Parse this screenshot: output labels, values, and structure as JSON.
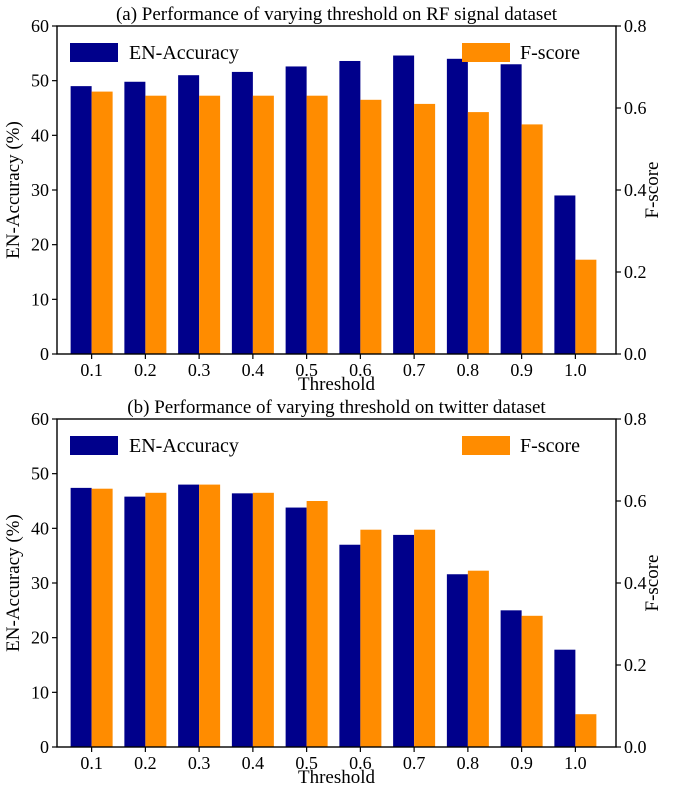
{
  "chart_data": [
    {
      "type": "bar",
      "title": "(a) Performance of varying threshold on RF signal dataset",
      "xlabel": "Threshold",
      "ylabel": "EN-Accuracy (%)",
      "y2label": "F-score",
      "categories": [
        "0.1",
        "0.2",
        "0.3",
        "0.4",
        "0.5",
        "0.6",
        "0.7",
        "0.8",
        "0.9",
        "1.0"
      ],
      "ylim": [
        0,
        60
      ],
      "y2lim": [
        0,
        0.8
      ],
      "yticks": [
        "0",
        "10",
        "20",
        "30",
        "40",
        "50",
        "60"
      ],
      "y2ticks": [
        "0.0",
        "0.2",
        "0.4",
        "0.6",
        "0.8"
      ],
      "grid": false,
      "series": [
        {
          "name": "EN-Accuracy",
          "axis": "left",
          "color": "#00008b",
          "values": [
            49.0,
            49.8,
            51.0,
            51.6,
            52.6,
            53.6,
            54.6,
            54.0,
            53.0,
            29.0
          ]
        },
        {
          "name": "F-score",
          "axis": "right",
          "color": "#ff8c00",
          "values": [
            0.64,
            0.63,
            0.63,
            0.63,
            0.63,
            0.62,
            0.61,
            0.59,
            0.56,
            0.23
          ]
        }
      ],
      "legend": [
        {
          "label": "EN-Accuracy",
          "position": "top-left"
        },
        {
          "label": "F-score",
          "position": "top-right"
        }
      ]
    },
    {
      "type": "bar",
      "title": "(b) Performance of varying threshold on twitter dataset",
      "xlabel": "Threshold",
      "ylabel": "EN-Accuracy (%)",
      "y2label": "F-score",
      "categories": [
        "0.1",
        "0.2",
        "0.3",
        "0.4",
        "0.5",
        "0.6",
        "0.7",
        "0.8",
        "0.9",
        "1.0"
      ],
      "ylim": [
        0,
        60
      ],
      "y2lim": [
        0,
        0.8
      ],
      "yticks": [
        "0",
        "10",
        "20",
        "30",
        "40",
        "50",
        "60"
      ],
      "y2ticks": [
        "0.0",
        "0.2",
        "0.4",
        "0.6",
        "0.8"
      ],
      "grid": false,
      "series": [
        {
          "name": "EN-Accuracy",
          "axis": "left",
          "color": "#00008b",
          "values": [
            47.4,
            45.8,
            48.0,
            46.4,
            43.8,
            37.0,
            38.8,
            31.6,
            25.0,
            17.8
          ]
        },
        {
          "name": "F-score",
          "axis": "right",
          "color": "#ff8c00",
          "values": [
            0.63,
            0.62,
            0.64,
            0.62,
            0.6,
            0.53,
            0.53,
            0.43,
            0.32,
            0.08
          ]
        }
      ],
      "legend": [
        {
          "label": "EN-Accuracy",
          "position": "top-left"
        },
        {
          "label": "F-score",
          "position": "top-right"
        }
      ]
    }
  ]
}
